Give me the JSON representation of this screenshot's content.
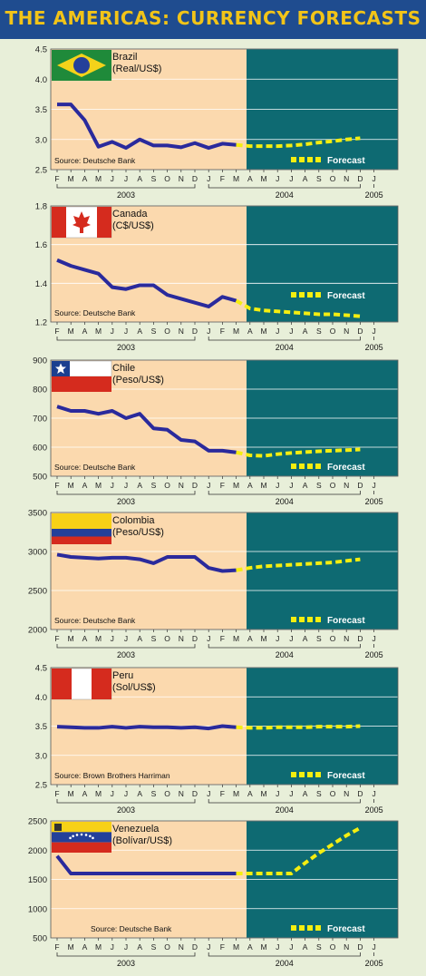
{
  "title": "THE AMERICAS: CURRENCY FORECASTS",
  "colors": {
    "background": "#e8efd9",
    "title_bar": "#1f4c8f",
    "title_text": "#f2c418",
    "history_panel": "#fbd9ae",
    "forecast_panel": "#0e6a72",
    "actual_line": "#2a2a9c",
    "forecast_line": "#f5ee10"
  },
  "months": [
    "F",
    "M",
    "A",
    "M",
    "J",
    "J",
    "A",
    "S",
    "O",
    "N",
    "D",
    "J",
    "F",
    "M",
    "A",
    "M",
    "J",
    "J",
    "A",
    "S",
    "O",
    "N",
    "D",
    "J"
  ],
  "years": [
    {
      "label": "2003",
      "from": 0,
      "to": 10
    },
    {
      "label": "2004",
      "from": 11,
      "to": 22
    },
    {
      "label": "2005",
      "from": 23,
      "to": 23
    }
  ],
  "legend_forecast_label": "Forecast",
  "chart_data": [
    {
      "type": "line",
      "country": "Brazil",
      "unit": "(Real/US$)",
      "flag": "brazil-flag",
      "source": "Source: Deutsche Bank",
      "ylim": [
        2.5,
        4.5
      ],
      "yticks": [
        "4.5",
        "4.0",
        "3.5",
        "3.0",
        "2.5"
      ],
      "ytick_values": [
        4.5,
        4.0,
        3.5,
        3.0,
        2.5
      ],
      "actual": [
        3.58,
        3.58,
        3.32,
        2.88,
        2.96,
        2.86,
        3.0,
        2.9,
        2.9,
        2.87,
        2.94,
        2.86,
        2.93,
        2.91
      ],
      "forecast": [
        2.91,
        2.89,
        2.89,
        2.89,
        2.9,
        2.92,
        2.95,
        2.97,
        3.0,
        3.02
      ]
    },
    {
      "type": "line",
      "country": "Canada",
      "unit": "(C$/US$)",
      "flag": "canada-flag",
      "source": "Source: Deutsche Bank",
      "ylim": [
        1.2,
        1.8
      ],
      "yticks": [
        "1.8",
        "1.6",
        "1.4",
        "1.2"
      ],
      "ytick_values": [
        1.8,
        1.6,
        1.4,
        1.2
      ],
      "actual": [
        1.52,
        1.49,
        1.47,
        1.45,
        1.38,
        1.37,
        1.39,
        1.39,
        1.34,
        1.32,
        1.3,
        1.28,
        1.33,
        1.31
      ],
      "forecast": [
        1.31,
        1.27,
        1.26,
        1.255,
        1.25,
        1.245,
        1.24,
        1.24,
        1.235,
        1.23
      ]
    },
    {
      "type": "line",
      "country": "Chile",
      "unit": "(Peso/US$)",
      "flag": "chile-flag",
      "source": "Source: Deutsche Bank",
      "ylim": [
        500,
        900
      ],
      "yticks": [
        "900",
        "800",
        "700",
        "600",
        "500"
      ],
      "ytick_values": [
        900,
        800,
        700,
        600,
        500
      ],
      "actual": [
        740,
        725,
        725,
        715,
        725,
        700,
        715,
        665,
        660,
        625,
        620,
        588,
        588,
        582
      ],
      "forecast": [
        582,
        572,
        570,
        576,
        580,
        583,
        586,
        588,
        590,
        592
      ]
    },
    {
      "type": "line",
      "country": "Colombia",
      "unit": "(Peso/US$)",
      "flag": "colombia-flag",
      "source": "Source: Deutsche Bank",
      "ylim": [
        2000,
        3500
      ],
      "yticks": [
        "3500",
        "3000",
        "2500",
        "2000"
      ],
      "ytick_values": [
        3500,
        3000,
        2500,
        2000
      ],
      "actual": [
        2960,
        2930,
        2920,
        2910,
        2920,
        2920,
        2900,
        2850,
        2930,
        2930,
        2930,
        2790,
        2750,
        2760
      ],
      "forecast": [
        2760,
        2790,
        2810,
        2820,
        2830,
        2840,
        2850,
        2860,
        2880,
        2900
      ]
    },
    {
      "type": "line",
      "country": "Peru",
      "unit": "(Sol/US$)",
      "flag": "peru-flag",
      "source": "Source: Brown Brothers Harriman",
      "ylim": [
        2.5,
        4.5
      ],
      "yticks": [
        "4.5",
        "4.0",
        "3.5",
        "3.0",
        "2.5"
      ],
      "ytick_values": [
        4.5,
        4.0,
        3.5,
        3.0,
        2.5
      ],
      "actual": [
        3.49,
        3.48,
        3.47,
        3.47,
        3.49,
        3.47,
        3.49,
        3.48,
        3.48,
        3.47,
        3.48,
        3.46,
        3.5,
        3.48
      ],
      "forecast": [
        3.48,
        3.47,
        3.47,
        3.48,
        3.48,
        3.48,
        3.49,
        3.49,
        3.49,
        3.5
      ]
    },
    {
      "type": "line",
      "country": "Venezuela",
      "unit": "(Bolívar/US$)",
      "flag": "venezuela-flag",
      "source": "Source: Deutsche Bank",
      "ylim": [
        500,
        2500
      ],
      "yticks": [
        "2500",
        "2000",
        "1500",
        "1000",
        "500"
      ],
      "ytick_values": [
        2500,
        2000,
        1500,
        1000,
        500
      ],
      "actual": [
        1900,
        1600,
        1600,
        1600,
        1600,
        1600,
        1600,
        1600,
        1600,
        1600,
        1600,
        1600,
        1600,
        1600
      ],
      "forecast": [
        1600,
        1600,
        1600,
        1600,
        1600,
        1780,
        1950,
        2100,
        2250,
        2380
      ]
    }
  ]
}
